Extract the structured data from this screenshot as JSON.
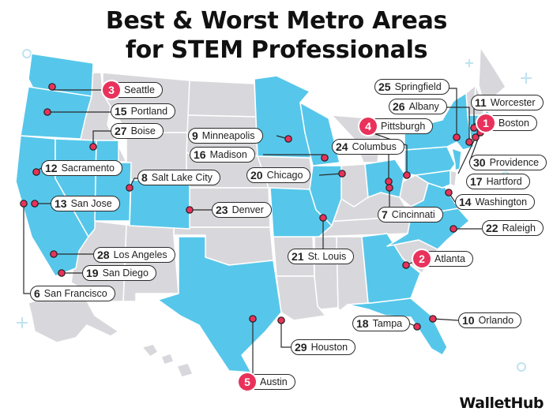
{
  "title": {
    "line1": "Best & Worst Metro Areas",
    "line2": "for STEM Professionals"
  },
  "brand": "WalletHub",
  "colors": {
    "highlight_state": "#56c7ea",
    "other_state": "#d8d8dc",
    "border": "#ffffff",
    "marker": "#e8325b",
    "top5_badge": "#e8325b",
    "decoration": "#bfe3f0"
  },
  "highlighted_states": [
    "Washington",
    "Oregon",
    "California",
    "Nevada",
    "Utah",
    "Colorado",
    "Texas",
    "Minnesota",
    "Wisconsin",
    "Illinois",
    "Missouri",
    "Ohio",
    "Georgia",
    "Florida",
    "North Carolina",
    "Virginia",
    "Maryland",
    "Massachusetts",
    "Connecticut",
    "Rhode Island",
    "New Jersey",
    "New York",
    "Pennsylvania"
  ],
  "metros": [
    {
      "rank": "1",
      "name": "Boston"
    },
    {
      "rank": "2",
      "name": "Atlanta"
    },
    {
      "rank": "3",
      "name": "Seattle"
    },
    {
      "rank": "4",
      "name": "Pittsburgh"
    },
    {
      "rank": "5",
      "name": "Austin"
    },
    {
      "rank": "6",
      "name": "San Francisco"
    },
    {
      "rank": "7",
      "name": "Cincinnati"
    },
    {
      "rank": "8",
      "name": "Salt Lake City"
    },
    {
      "rank": "9",
      "name": "Minneapolis"
    },
    {
      "rank": "10",
      "name": "Orlando"
    },
    {
      "rank": "11",
      "name": "Worcester"
    },
    {
      "rank": "12",
      "name": "Sacramento"
    },
    {
      "rank": "13",
      "name": "San Jose"
    },
    {
      "rank": "14",
      "name": "Washington"
    },
    {
      "rank": "15",
      "name": "Portland"
    },
    {
      "rank": "16",
      "name": "Madison"
    },
    {
      "rank": "17",
      "name": "Hartford"
    },
    {
      "rank": "18",
      "name": "Tampa"
    },
    {
      "rank": "19",
      "name": "San Diego"
    },
    {
      "rank": "20",
      "name": "Chicago"
    },
    {
      "rank": "21",
      "name": "St. Louis"
    },
    {
      "rank": "22",
      "name": "Raleigh"
    },
    {
      "rank": "23",
      "name": "Denver"
    },
    {
      "rank": "24",
      "name": "Columbus"
    },
    {
      "rank": "25",
      "name": "Springfield"
    },
    {
      "rank": "26",
      "name": "Albany"
    },
    {
      "rank": "27",
      "name": "Boise"
    },
    {
      "rank": "28",
      "name": "Los Angeles"
    },
    {
      "rank": "29",
      "name": "Houston"
    },
    {
      "rank": "30",
      "name": "Providence"
    }
  ]
}
